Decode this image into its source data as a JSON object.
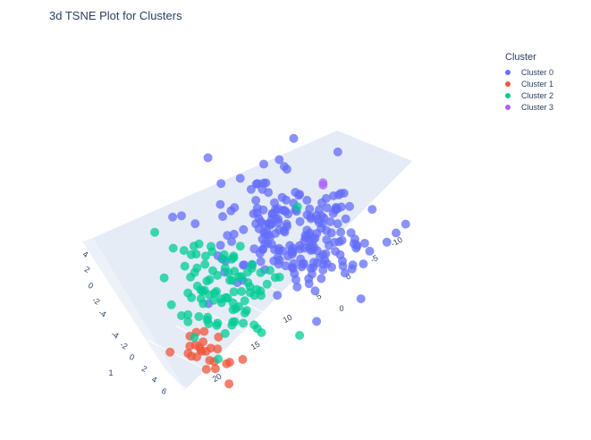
{
  "chart_data": {
    "type": "scatter",
    "title": "3d TSNE Plot for Clusters",
    "legend": {
      "title": "Cluster",
      "placement": "top-right"
    },
    "axes": {
      "x": {
        "range": [
          -12,
          22
        ],
        "ticks": [
          "-10",
          "-5",
          "0",
          "5",
          "10",
          "15",
          "20"
        ]
      },
      "y": {
        "range": [
          -5,
          7
        ],
        "ticks": [
          "-4",
          "-2",
          "0",
          "2",
          "4",
          "6"
        ]
      },
      "z": {
        "range": [
          -5,
          5
        ],
        "ticks": [
          "-4",
          "-2",
          "0",
          "2",
          "4"
        ]
      },
      "extra_tick_labels": [
        "0",
        "1",
        "-4"
      ],
      "grid": true
    },
    "series": [
      {
        "name": "Cluster 0",
        "color": "#636efa",
        "center": [
          -6,
          -2,
          0
        ],
        "spread": [
          4.5,
          3.0,
          1.6
        ],
        "count": 220
      },
      {
        "name": "Cluster 1",
        "color": "#ef553b",
        "center": [
          19,
          3,
          -2
        ],
        "spread": [
          1.2,
          1.2,
          0.8
        ],
        "count": 25
      },
      {
        "name": "Cluster 2",
        "color": "#00cc96",
        "center": [
          12,
          1,
          1
        ],
        "spread": [
          3.5,
          2.2,
          1.8
        ],
        "count": 95
      },
      {
        "name": "Cluster 3",
        "color": "#ab63fa",
        "center": [
          -9,
          -1,
          3.5
        ],
        "spread": [
          0.2,
          0.2,
          0.2
        ],
        "count": 2
      }
    ]
  }
}
